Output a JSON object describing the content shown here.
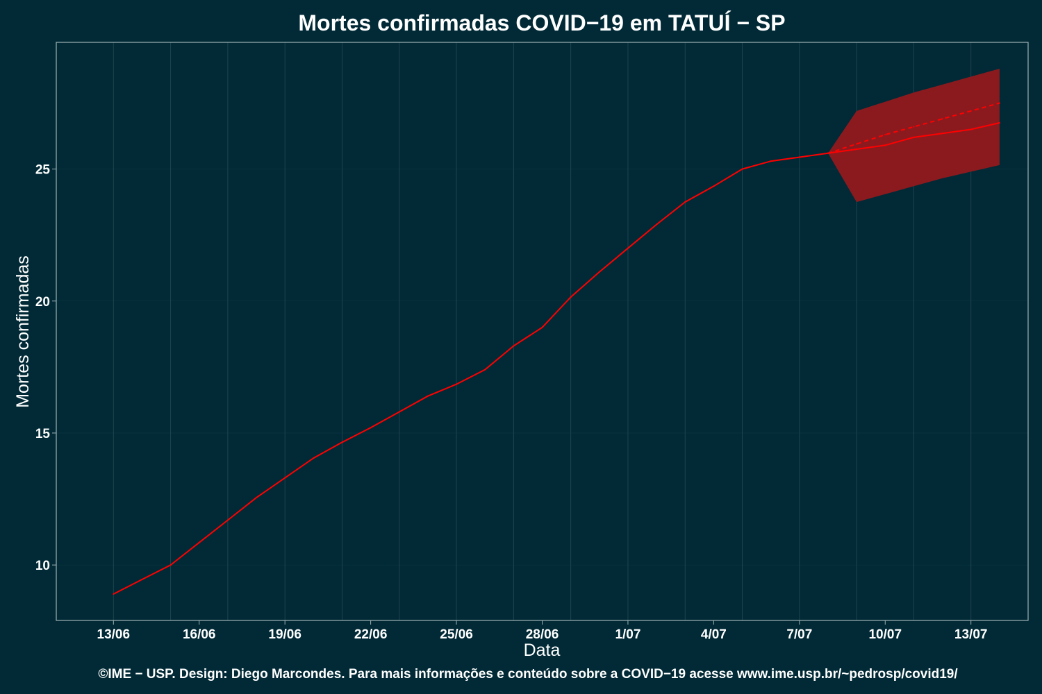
{
  "chart_data": {
    "type": "line",
    "title": "Mortes confirmadas COVID−19 em TATUÍ − SP",
    "xlabel": "Data",
    "ylabel": "Mortes confirmadas",
    "caption": "©IME − USP. Design: Diego Marcondes. Para mais informações e conteúdo sobre a COVID−19 acesse www.ime.usp.br/~pedrosp/covid19/",
    "x_tick_labels": [
      "13/06",
      "16/06",
      "19/06",
      "22/06",
      "25/06",
      "28/06",
      "1/07",
      "4/07",
      "7/07",
      "10/07",
      "13/07"
    ],
    "y_ticks": [
      10,
      15,
      20,
      25
    ],
    "ylim": [
      7.9,
      29.8
    ],
    "xlim": [
      "11/06",
      "15/07"
    ],
    "grid": true,
    "colors": {
      "background": "#012a36",
      "line": "#ff0000",
      "band": "#8b1a1f",
      "grid": "#1e4450",
      "frame": "#9fb2b4"
    },
    "series": [
      {
        "style": "solid",
        "x": [
          "13/06",
          "14/06",
          "15/06",
          "16/06",
          "17/06",
          "18/06",
          "19/06",
          "20/06",
          "21/06",
          "22/06",
          "23/06",
          "24/06",
          "25/06",
          "26/06",
          "27/06",
          "28/06",
          "29/06",
          "30/06",
          "1/07",
          "2/07",
          "3/07",
          "4/07",
          "5/07",
          "6/07",
          "7/07",
          "8/07",
          "9/07",
          "10/07",
          "11/07",
          "12/07",
          "13/07",
          "14/07"
        ],
        "y": [
          8.9,
          9.45,
          10.0,
          10.85,
          11.7,
          12.55,
          13.3,
          14.05,
          14.65,
          15.2,
          15.8,
          16.4,
          16.85,
          17.4,
          18.3,
          19.0,
          20.15,
          21.1,
          22.0,
          22.9,
          23.75,
          24.35,
          25.0,
          25.3,
          25.45,
          25.6,
          25.75,
          25.9,
          26.2,
          26.35,
          26.5,
          26.75
        ]
      },
      {
        "style": "dashed",
        "x": [
          "8/07",
          "9/07",
          "10/07",
          "11/07",
          "12/07",
          "13/07",
          "14/07"
        ],
        "y": [
          25.6,
          25.95,
          26.3,
          26.6,
          26.9,
          27.2,
          27.5
        ]
      }
    ],
    "band": {
      "x": [
        "8/07",
        "9/07",
        "10/07",
        "11/07",
        "12/07",
        "13/07",
        "14/07"
      ],
      "lower": [
        25.6,
        23.75,
        24.05,
        24.35,
        24.65,
        24.9,
        25.15
      ],
      "upper": [
        25.6,
        27.2,
        27.55,
        27.9,
        28.2,
        28.5,
        28.8
      ]
    }
  }
}
